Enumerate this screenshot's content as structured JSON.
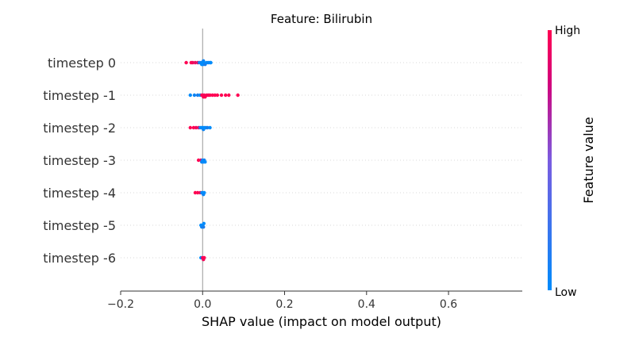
{
  "chart_data": {
    "type": "scatter",
    "subtype": "shap-beeswarm",
    "title": "Feature: Bilirubin",
    "xlabel": "SHAP value (impact on model output)",
    "ylabel": "",
    "xlim": [
      -0.2,
      0.78
    ],
    "xticks": [
      -0.2,
      0.0,
      0.2,
      0.4,
      0.6
    ],
    "xtick_labels": [
      "−0.2",
      "0.0",
      "0.2",
      "0.4",
      "0.6"
    ],
    "grid": false,
    "categories": [
      "timestep 0",
      "timestep -1",
      "timestep -2",
      "timestep -3",
      "timestep -4",
      "timestep -5",
      "timestep -6"
    ],
    "series": [
      {
        "category": "timestep 0",
        "points": [
          {
            "x": -0.04,
            "v": 1.0
          },
          {
            "x": -0.028,
            "v": 1.0
          },
          {
            "x": -0.024,
            "v": 0.95
          },
          {
            "x": -0.018,
            "v": 0.9
          },
          {
            "x": -0.012,
            "v": 0.85
          },
          {
            "x": -0.008,
            "v": 0.1
          },
          {
            "x": -0.004,
            "v": 0.05
          },
          {
            "x": -0.002,
            "v": 0.0
          },
          {
            "x": 0.0,
            "v": 0.0
          },
          {
            "x": 0.001,
            "v": 0.0
          },
          {
            "x": 0.002,
            "v": 0.05
          },
          {
            "x": 0.004,
            "v": 0.0
          },
          {
            "x": 0.006,
            "v": 0.1
          },
          {
            "x": 0.01,
            "v": 0.0
          },
          {
            "x": 0.014,
            "v": 0.05
          },
          {
            "x": 0.018,
            "v": 0.0
          },
          {
            "x": 0.02,
            "v": 0.0
          }
        ]
      },
      {
        "category": "timestep -1",
        "points": [
          {
            "x": -0.03,
            "v": 0.0
          },
          {
            "x": -0.02,
            "v": 0.05
          },
          {
            "x": -0.012,
            "v": 0.1
          },
          {
            "x": -0.006,
            "v": 0.0
          },
          {
            "x": -0.002,
            "v": 0.9
          },
          {
            "x": 0.0,
            "v": 1.0
          },
          {
            "x": 0.002,
            "v": 1.0
          },
          {
            "x": 0.004,
            "v": 0.95
          },
          {
            "x": 0.006,
            "v": 1.0
          },
          {
            "x": 0.01,
            "v": 1.0
          },
          {
            "x": 0.014,
            "v": 0.95
          },
          {
            "x": 0.018,
            "v": 1.0
          },
          {
            "x": 0.024,
            "v": 1.0
          },
          {
            "x": 0.03,
            "v": 1.0
          },
          {
            "x": 0.036,
            "v": 1.0
          },
          {
            "x": 0.046,
            "v": 1.0
          },
          {
            "x": 0.056,
            "v": 1.0
          },
          {
            "x": 0.064,
            "v": 1.0
          },
          {
            "x": 0.086,
            "v": 1.0
          }
        ]
      },
      {
        "category": "timestep -2",
        "points": [
          {
            "x": -0.03,
            "v": 1.0
          },
          {
            "x": -0.022,
            "v": 1.0
          },
          {
            "x": -0.016,
            "v": 0.95
          },
          {
            "x": -0.01,
            "v": 0.9
          },
          {
            "x": -0.006,
            "v": 0.05
          },
          {
            "x": -0.002,
            "v": 0.0
          },
          {
            "x": 0.0,
            "v": 0.0
          },
          {
            "x": 0.002,
            "v": 0.05
          },
          {
            "x": 0.004,
            "v": 0.0
          },
          {
            "x": 0.008,
            "v": 0.0
          },
          {
            "x": 0.012,
            "v": 0.1
          },
          {
            "x": 0.018,
            "v": 0.0
          }
        ]
      },
      {
        "category": "timestep -3",
        "points": [
          {
            "x": -0.01,
            "v": 1.0
          },
          {
            "x": -0.004,
            "v": 0.9
          },
          {
            "x": -0.002,
            "v": 0.05
          },
          {
            "x": 0.0,
            "v": 0.0
          },
          {
            "x": 0.002,
            "v": 0.0
          },
          {
            "x": 0.004,
            "v": 0.05
          },
          {
            "x": 0.006,
            "v": 0.0
          }
        ]
      },
      {
        "category": "timestep -4",
        "points": [
          {
            "x": -0.018,
            "v": 1.0
          },
          {
            "x": -0.012,
            "v": 1.0
          },
          {
            "x": -0.006,
            "v": 0.9
          },
          {
            "x": -0.002,
            "v": 0.1
          },
          {
            "x": 0.0,
            "v": 0.0
          },
          {
            "x": 0.002,
            "v": 0.05
          },
          {
            "x": 0.004,
            "v": 0.0
          }
        ]
      },
      {
        "category": "timestep -5",
        "points": [
          {
            "x": -0.004,
            "v": 0.0
          },
          {
            "x": -0.002,
            "v": 0.05
          },
          {
            "x": 0.0,
            "v": 0.0
          },
          {
            "x": 0.002,
            "v": 0.1
          },
          {
            "x": 0.003,
            "v": 0.0
          }
        ]
      },
      {
        "category": "timestep -6",
        "points": [
          {
            "x": -0.004,
            "v": 0.0
          },
          {
            "x": 0.0,
            "v": 1.0
          },
          {
            "x": 0.002,
            "v": 0.95
          },
          {
            "x": 0.004,
            "v": 1.0
          }
        ]
      }
    ],
    "colorbar": {
      "label": "Feature value",
      "high_label": "High",
      "low_label": "Low",
      "low_color": "#008bfb",
      "high_color": "#ff0052"
    }
  }
}
